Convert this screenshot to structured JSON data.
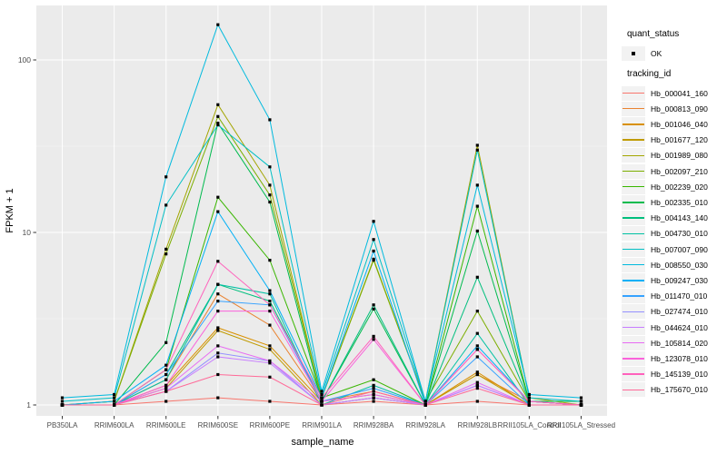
{
  "figure": {
    "background": "#FFFFFF",
    "panel_background": "#EBEBEB",
    "grid_major_color": "#FFFFFF",
    "axis_text_color": "#4D4D4D",
    "point_color": "#000000",
    "legend_key_background": "#F2F2F2"
  },
  "legend": {
    "quant_status_title": "quant_status",
    "quant_status_ok_label": "OK",
    "tracking_id_title": "tracking_id"
  },
  "chart_data": {
    "type": "line",
    "title": "",
    "xlabel": "sample_name",
    "ylabel": "FPKM + 1",
    "y_scale": "log10",
    "ylim": [
      1,
      200
    ],
    "y_ticks": [
      1,
      10,
      100
    ],
    "y_minor_ticks": [
      3.162,
      31.62
    ],
    "grid": true,
    "legend_position": "right",
    "point_shape": "small-black-square",
    "quant_status": "OK",
    "categories": [
      "PB350LA",
      "RRIM600LA",
      "RRIM600LE",
      "RRIM600SE",
      "RRIM600PE",
      "RRIM901LA",
      "RRIM928BA",
      "RRIM928LA",
      "RRIM928LB",
      "RRII105LA_Control",
      "RRII105LA_Stressed"
    ],
    "series": [
      {
        "name": "Hb_000041_160",
        "color": "#F8766D",
        "values": [
          1,
          1,
          1.05,
          1.1,
          1.05,
          1,
          1.05,
          1,
          1.05,
          1,
          1
        ]
      },
      {
        "name": "Hb_000813_090",
        "color": "#EA8331",
        "values": [
          1,
          1,
          1.4,
          4.4,
          2.9,
          1.05,
          1.2,
          1,
          1.5,
          1.05,
          1
        ]
      },
      {
        "name": "Hb_001046_040",
        "color": "#D89000",
        "values": [
          1,
          1,
          1.3,
          2.8,
          2.2,
          1.05,
          1.15,
          1,
          1.55,
          1,
          1
        ]
      },
      {
        "name": "Hb_001677_120",
        "color": "#C09B00",
        "values": [
          1,
          1,
          1.25,
          2.7,
          2.1,
          1,
          1.1,
          1,
          1.5,
          1,
          1
        ]
      },
      {
        "name": "Hb_001989_080",
        "color": "#A3A500",
        "values": [
          1,
          1.05,
          8,
          55,
          18.8,
          1.1,
          7,
          1.05,
          32,
          1.1,
          1
        ]
      },
      {
        "name": "Hb_002097_210",
        "color": "#7CAE00",
        "values": [
          1,
          1.05,
          7.5,
          47,
          16.5,
          1.1,
          6.9,
          1.05,
          3.5,
          1.05,
          1
        ]
      },
      {
        "name": "Hb_002239_020",
        "color": "#39B600",
        "values": [
          1,
          1,
          1.6,
          16,
          6.9,
          1.1,
          1.4,
          1,
          14.2,
          1.05,
          1.05
        ]
      },
      {
        "name": "Hb_002335_010",
        "color": "#00BB4E",
        "values": [
          1,
          1,
          2.3,
          43,
          15,
          1.05,
          3.6,
          1,
          10.2,
          1.05,
          1.05
        ]
      },
      {
        "name": "Hb_004143_140",
        "color": "#00BF7D",
        "values": [
          1,
          1,
          1.5,
          5,
          4,
          1.05,
          3.8,
          1,
          5.5,
          1.05,
          1
        ]
      },
      {
        "name": "Hb_004730_010",
        "color": "#00C1A3",
        "values": [
          1,
          1,
          1.4,
          5,
          4.4,
          1,
          1.3,
          1,
          2.6,
          1,
          1
        ]
      },
      {
        "name": "Hb_007007_090",
        "color": "#00BFC4",
        "values": [
          1.05,
          1.1,
          14.4,
          42,
          24,
          1.15,
          9.1,
          1.05,
          30,
          1.1,
          1.05
        ]
      },
      {
        "name": "Hb_008550_030",
        "color": "#00BADE",
        "values": [
          1.1,
          1.15,
          21,
          160,
          45,
          1.2,
          11.6,
          1.05,
          18.8,
          1.15,
          1.1
        ]
      },
      {
        "name": "Hb_009247_030",
        "color": "#00B0F6",
        "values": [
          1,
          1.05,
          1.7,
          13.2,
          4.6,
          1.1,
          7.8,
          1,
          2.2,
          1.05,
          1
        ]
      },
      {
        "name": "Hb_011470_010",
        "color": "#35A2FF",
        "values": [
          1,
          1,
          1.5,
          4,
          3.8,
          1.05,
          1.25,
          1,
          1.9,
          1,
          1
        ]
      },
      {
        "name": "Hb_027474_010",
        "color": "#9590FF",
        "values": [
          1,
          1,
          1.2,
          2,
          1.8,
          1,
          1.1,
          1,
          1.3,
          1,
          1
        ]
      },
      {
        "name": "Hb_044624_010",
        "color": "#C77CFF",
        "values": [
          1,
          1,
          1.2,
          1.9,
          1.75,
          1,
          1.1,
          1,
          1.3,
          1,
          1
        ]
      },
      {
        "name": "Hb_105814_020",
        "color": "#E76BF3",
        "values": [
          1,
          1,
          1.25,
          2.2,
          1.8,
          1.05,
          1.15,
          1,
          1.35,
          1,
          1
        ]
      },
      {
        "name": "Hb_123078_010",
        "color": "#FA62DB",
        "values": [
          1,
          1,
          1.3,
          3.5,
          3.5,
          1.05,
          2.4,
          1,
          2.1,
          1.05,
          1
        ]
      },
      {
        "name": "Hb_145139_010",
        "color": "#FF62BC",
        "values": [
          1,
          1,
          1.6,
          6.8,
          3.8,
          1.1,
          2.5,
          1,
          2.1,
          1.05,
          1
        ]
      },
      {
        "name": "Hb_175670_010",
        "color": "#FF6A98",
        "values": [
          1,
          1,
          1.2,
          1.5,
          1.45,
          1,
          1.2,
          1,
          1.25,
          1,
          1
        ]
      }
    ]
  }
}
